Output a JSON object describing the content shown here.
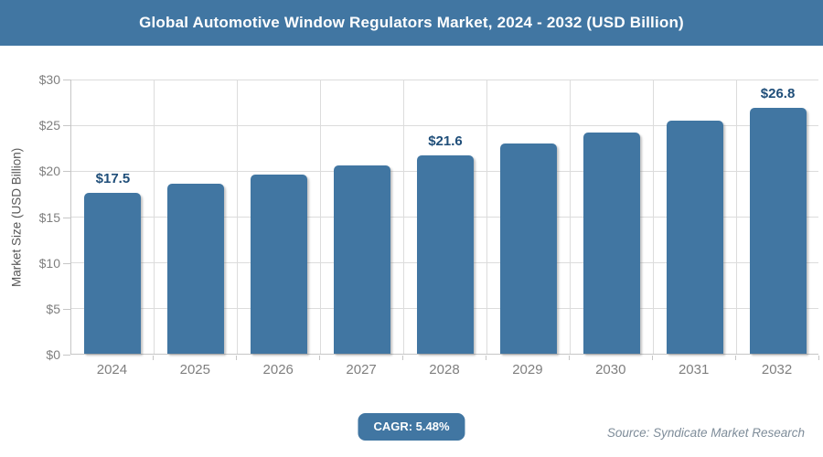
{
  "title_bar": {
    "title": "Global Automotive Window Regulators Market, 2024 - 2032 (USD Billion)",
    "bg_color": "#4176A2",
    "text_color": "#FFFFFF"
  },
  "chart_data": {
    "type": "bar",
    "title": "Global Automotive Window Regulators Market, 2024 - 2032 (USD Billion)",
    "categories": [
      "2024",
      "2025",
      "2026",
      "2027",
      "2028",
      "2029",
      "2030",
      "2031",
      "2032"
    ],
    "values": [
      17.5,
      18.5,
      19.5,
      20.5,
      21.6,
      22.9,
      24.1,
      25.4,
      26.8
    ],
    "value_labels": [
      "$17.5",
      "",
      "",
      "",
      "$21.6",
      "",
      "",
      "",
      "$26.8"
    ],
    "xlabel": "",
    "ylabel": "Market Size (USD Billion)",
    "ylim": [
      0,
      30
    ],
    "ytick_step": 5,
    "ytick_labels": [
      "$0",
      "$5",
      "$10",
      "$15",
      "$20",
      "$25",
      "$30"
    ],
    "grid": "both",
    "legend": "none",
    "bar_color": "#4176A2",
    "value_label_color": "#1F4E79",
    "tick_label_color": "#7f7f7f"
  },
  "footer": {
    "cagr_label": "CAGR: 5.48%",
    "source": "Source: Syndicate Market Research"
  }
}
